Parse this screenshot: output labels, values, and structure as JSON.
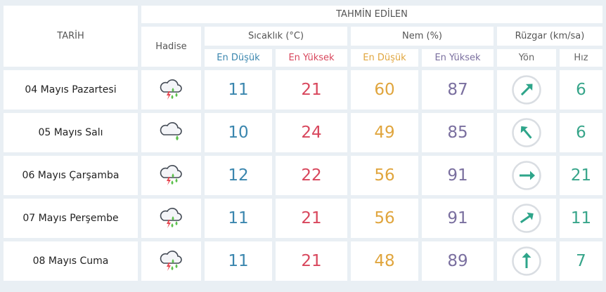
{
  "header": {
    "date": "TARİH",
    "forecast": "TAHMİN EDİLEN",
    "event": "Hadise",
    "temperature": "Sıcaklık (°C)",
    "humidity": "Nem (%)",
    "wind": "Rüzgar (km/sa)",
    "temp_min": "En Düşük",
    "temp_max": "En Yüksek",
    "hum_min": "En Düşük",
    "hum_max": "En Yüksek",
    "direction": "Yön",
    "speed": "Hız"
  },
  "colors": {
    "temp_min": "#3a86ae",
    "temp_max": "#d8465c",
    "hum_min": "#e0a53d",
    "hum_max": "#7a6f9f",
    "wind": "#37a58a",
    "background": "#e9eff4"
  },
  "rows": [
    {
      "date": "04 Mayıs Pazartesi",
      "icon": "thunderstorm-rain-icon",
      "temp_min": "11",
      "temp_max": "21",
      "hum_min": "60",
      "hum_max": "87",
      "wind_dir_deg": 45,
      "wind_speed": "6"
    },
    {
      "date": "05 Mayıs Salı",
      "icon": "cloud-rain-icon",
      "temp_min": "10",
      "temp_max": "24",
      "hum_min": "49",
      "hum_max": "85",
      "wind_dir_deg": -40,
      "wind_speed": "6"
    },
    {
      "date": "06 Mayıs Çarşamba",
      "icon": "thunderstorm-rain-icon",
      "temp_min": "12",
      "temp_max": "22",
      "hum_min": "56",
      "hum_max": "91",
      "wind_dir_deg": 90,
      "wind_speed": "21"
    },
    {
      "date": "07 Mayıs Perşembe",
      "icon": "thunderstorm-rain-icon",
      "temp_min": "11",
      "temp_max": "21",
      "hum_min": "56",
      "hum_max": "91",
      "wind_dir_deg": 55,
      "wind_speed": "11"
    },
    {
      "date": "08 Mayıs Cuma",
      "icon": "thunderstorm-rain-icon",
      "temp_min": "11",
      "temp_max": "21",
      "hum_min": "48",
      "hum_max": "89",
      "wind_dir_deg": 0,
      "wind_speed": "7"
    }
  ]
}
